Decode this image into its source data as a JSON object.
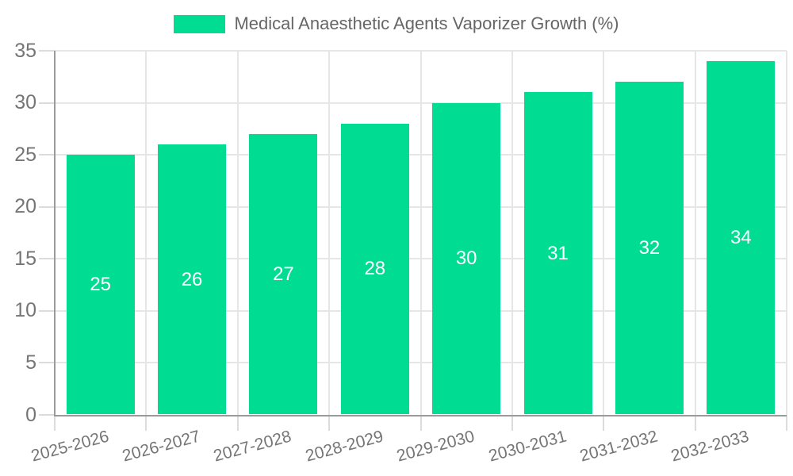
{
  "legend": {
    "label": "Medical Anaesthetic Agents Vaporizer Growth (%)"
  },
  "chart_data": {
    "type": "bar",
    "title": "Medical Anaesthetic Agents Vaporizer Growth (%)",
    "categories": [
      "2025-2026",
      "2026-2027",
      "2027-2028",
      "2028-2029",
      "2029-2030",
      "2030-2031",
      "2031-2032",
      "2032-2033"
    ],
    "values": [
      25,
      26,
      27,
      28,
      30,
      31,
      32,
      34
    ],
    "xlabel": "",
    "ylabel": "",
    "ylim": [
      0,
      35
    ],
    "ytick_step": 5,
    "yticks": [
      0,
      5,
      10,
      15,
      20,
      25,
      30,
      35
    ],
    "grid": true,
    "legend_position": "top",
    "bar_labels_shown": true,
    "colors": {
      "bar": "#00DC91",
      "bar_label": "#ffffff",
      "grid": "#e6e6e6",
      "tick": "#dcdcdc",
      "axis": "#9a9a9a",
      "tick_label": "#757575",
      "legend_text": "#666666",
      "background": "#ffffff"
    }
  }
}
